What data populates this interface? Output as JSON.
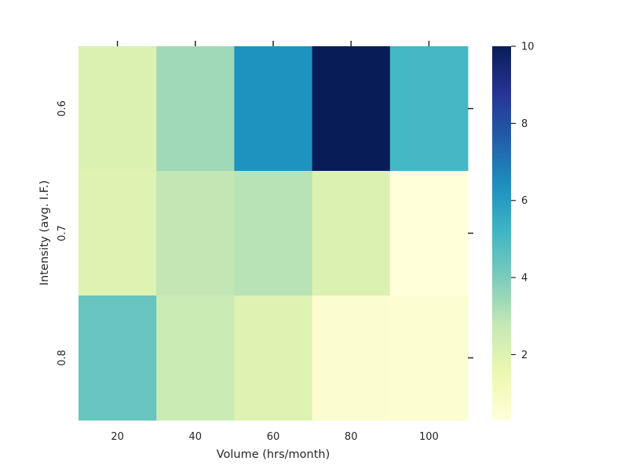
{
  "chart_data": {
    "type": "heatmap",
    "title": "",
    "xlabel": "Volume (hrs/month)",
    "ylabel": "Intensity (avg. I.F.)",
    "x": [
      "20",
      "40",
      "60",
      "80",
      "100"
    ],
    "y": [
      "0.6",
      "0.7",
      "0.8"
    ],
    "values": [
      [
        2.1,
        3.4,
        6.3,
        10.0,
        5.1
      ],
      [
        2.0,
        2.8,
        3.0,
        2.1,
        0.3
      ],
      [
        4.4,
        2.6,
        2.0,
        0.6,
        0.5
      ]
    ],
    "colormap": "YlGnBu",
    "colorbar": {
      "range": [
        0.3,
        10.0
      ],
      "ticks": [
        "2",
        "4",
        "6",
        "8",
        "10"
      ],
      "tick_values": [
        2,
        4,
        6,
        8,
        10
      ]
    },
    "grid": false
  }
}
